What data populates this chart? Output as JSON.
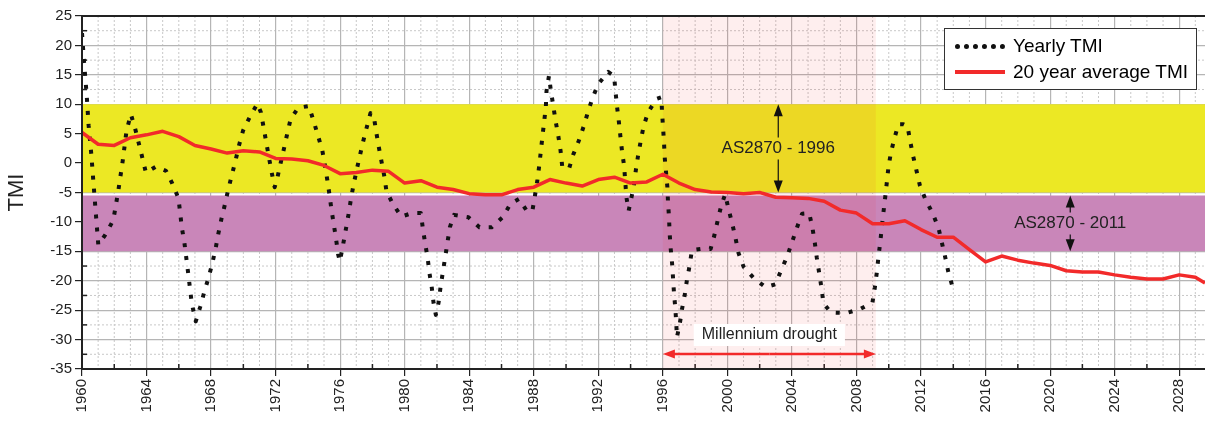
{
  "chart_data": {
    "type": "line",
    "ylabel": "TMI",
    "xlim": [
      1960,
      2029.6
    ],
    "xticks": [
      1960,
      1964,
      1968,
      1972,
      1976,
      1980,
      1984,
      1988,
      1992,
      1996,
      2000,
      2004,
      2008,
      2012,
      2016,
      2020,
      2024,
      2028
    ],
    "ylim": [
      -35,
      25
    ],
    "yticks": [
      -35,
      -30,
      -25,
      -20,
      -15,
      -10,
      -5,
      0,
      5,
      10,
      15,
      20,
      25
    ],
    "grid": true,
    "legend": "top right",
    "marker": "none",
    "series": [
      {
        "name": "Yearly TMI",
        "color": "#111111",
        "line_style": "dotted",
        "x": [
          1960,
          1960.14,
          1960.29,
          1960.41,
          1960.58,
          1960.72,
          1960.87,
          1961.01,
          1961.44,
          1961.94,
          1962.25,
          1962.52,
          1962.76,
          1963.03,
          1963.3,
          1963.75,
          1963.96,
          1964.58,
          1965.2,
          1965.6,
          1965.98,
          1966.19,
          1966.35,
          1966.58,
          1966.8,
          1967.05,
          1967.32,
          1967.57,
          1967.84,
          1968.08,
          1968.29,
          1968.45,
          1968.64,
          1968.87,
          1969.07,
          1969.3,
          1969.53,
          1969.73,
          1969.98,
          1970.39,
          1970.87,
          1971.09,
          1971.26,
          1971.42,
          1971.59,
          1971.75,
          1971.94,
          1972.1,
          1972.31,
          1972.52,
          1972.72,
          1972.93,
          1973.4,
          1974.06,
          1974.35,
          1974.62,
          1974.89,
          1975.05,
          1975.2,
          1975.34,
          1975.46,
          1975.61,
          1975.75,
          1975.88,
          1975.98,
          1976.16,
          1976.33,
          1976.49,
          1976.64,
          1976.8,
          1976.99,
          1977.2,
          1977.4,
          1977.63,
          1977.88,
          1978.08,
          1978.23,
          1978.39,
          1978.56,
          1978.74,
          1978.87,
          1979.26,
          1979.79,
          1980.45,
          1981.0,
          1981.13,
          1981.27,
          1981.42,
          1981.54,
          1981.68,
          1981.79,
          1981.93,
          1982.1,
          1982.22,
          1982.36,
          1982.51,
          1982.65,
          1982.8,
          1983.06,
          1983.95,
          1984.63,
          1985.39,
          1986.07,
          1986.56,
          1987.08,
          1987.61,
          1987.92,
          1988.07,
          1988.23,
          1988.34,
          1988.44,
          1988.54,
          1988.65,
          1988.75,
          1988.79,
          1988.94,
          1989.06,
          1989.21,
          1989.35,
          1989.52,
          1989.66,
          1989.76,
          1990.18,
          1990.44,
          1990.79,
          1991.1,
          1991.37,
          1991.66,
          1991.99,
          1992.61,
          1992.98,
          1993.06,
          1993.16,
          1993.27,
          1993.37,
          1993.47,
          1993.6,
          1993.74,
          1993.88,
          1994.01,
          1994.2,
          1994.32,
          1994.46,
          1994.63,
          1994.81,
          1995.08,
          1995.6,
          1995.91,
          1995.95,
          1996.01,
          1996.07,
          1996.11,
          1996.28,
          1996.32,
          1996.38,
          1996.42,
          1996.48,
          1996.57,
          1996.63,
          1996.69,
          1996.77,
          1996.83,
          1996.87,
          1997.04,
          1997.18,
          1997.35,
          1997.49,
          1997.66,
          1997.8,
          1998.34,
          1998.96,
          1999.2,
          1999.41,
          1999.62,
          1999.86,
          2000.07,
          2000.3,
          2000.5,
          2000.69,
          2001.0,
          2001.62,
          2002.36,
          2002.98,
          2003.33,
          2003.7,
          2004.01,
          2004.32,
          2004.63,
          2005.07,
          2005.27,
          2005.42,
          2005.54,
          2005.69,
          2005.83,
          2005.95,
          2006.41,
          2007.34,
          2008.23,
          2008.99,
          2009.14,
          2009.26,
          2009.36,
          2009.47,
          2009.57,
          2009.67,
          2009.78,
          2009.88,
          2009.98,
          2010.13,
          2010.34,
          2010.6,
          2010.91,
          2011.16,
          2011.33,
          2011.51,
          2011.72,
          2011.93,
          2012.26,
          2012.71,
          2013.08,
          2013.29,
          2013.5,
          2013.7,
          2013.95
        ],
        "values": [
          22.1,
          16.7,
          11.6,
          6.4,
          1.4,
          -3.7,
          -9.0,
          -13.9,
          -12.2,
          -9.7,
          -4.7,
          0.3,
          5.5,
          8.3,
          5.8,
          0.8,
          -1.6,
          -0.6,
          -1.3,
          -3.5,
          -6.0,
          -11.0,
          -13.6,
          -18.7,
          -23.8,
          -26.9,
          -24.5,
          -22.0,
          -19.5,
          -17.0,
          -14.4,
          -12.0,
          -9.5,
          -6.9,
          -4.4,
          -1.9,
          0.6,
          3.0,
          5.5,
          7.8,
          10.1,
          8.6,
          6.0,
          3.5,
          0.9,
          -1.5,
          -4.1,
          -2.6,
          0.0,
          2.5,
          5.0,
          7.5,
          9.4,
          9.7,
          7.2,
          4.7,
          2.2,
          -0.3,
          -2.8,
          -5.4,
          -7.9,
          -10.5,
          -13.0,
          -15.6,
          -16.7,
          -14.2,
          -11.6,
          -9.2,
          -6.6,
          -4.1,
          -1.6,
          1.0,
          3.4,
          5.9,
          8.5,
          8.0,
          5.4,
          2.8,
          0.3,
          -2.3,
          -4.8,
          -6.9,
          -9.1,
          -8.5,
          -8.5,
          -11.2,
          -13.7,
          -16.1,
          -18.8,
          -21.2,
          -23.8,
          -25.8,
          -23.7,
          -21.1,
          -18.6,
          -16.0,
          -13.5,
          -10.9,
          -8.8,
          -9.2,
          -10.9,
          -10.9,
          -9.2,
          -6.9,
          -6.1,
          -8.3,
          -8.0,
          -5.6,
          -2.8,
          -0.4,
          2.1,
          4.6,
          7.2,
          9.7,
          12.3,
          14.8,
          12.3,
          9.7,
          7.2,
          4.6,
          2.1,
          -0.5,
          -1.0,
          1.4,
          3.8,
          6.3,
          8.8,
          11.2,
          13.4,
          15.5,
          14.8,
          12.3,
          9.6,
          7.1,
          4.5,
          2.0,
          -0.5,
          -5.8,
          -8.1,
          -6.4,
          -3.9,
          -1.3,
          1.2,
          3.8,
          6.3,
          8.6,
          10.9,
          11.2,
          8.6,
          6.1,
          3.6,
          1.1,
          -4.1,
          -6.7,
          -9.2,
          -11.9,
          -14.4,
          -17.0,
          -19.5,
          -22.1,
          -24.6,
          -27.2,
          -29.6,
          -27.5,
          -24.9,
          -22.5,
          -19.9,
          -17.4,
          -14.8,
          -14.6,
          -14.6,
          -12.2,
          -9.6,
          -7.2,
          -5.3,
          -7.8,
          -10.3,
          -12.7,
          -15.3,
          -17.6,
          -19.5,
          -21.1,
          -20.6,
          -18.2,
          -15.9,
          -13.4,
          -10.9,
          -8.6,
          -8.5,
          -11.0,
          -13.6,
          -16.1,
          -18.7,
          -21.2,
          -23.8,
          -25.4,
          -25.5,
          -24.8,
          -23.7,
          -21.1,
          -18.6,
          -16.0,
          -13.5,
          -10.9,
          -8.4,
          -5.8,
          -3.3,
          -0.7,
          1.7,
          4.1,
          6.6,
          6.6,
          6.3,
          3.7,
          1.2,
          -1.3,
          -3.8,
          -6.1,
          -8.5,
          -11.0,
          -13.5,
          -16.0,
          -18.6,
          -21.0
        ]
      },
      {
        "name": "20 year average TMI",
        "color": "#f22a2a",
        "line_style": "solid",
        "x": [
          1960,
          1961,
          1962,
          1963,
          1964,
          1965,
          1966,
          1967,
          1968,
          1969,
          1970,
          1971,
          1972,
          1973,
          1974,
          1975,
          1976,
          1977,
          1978,
          1979,
          1980,
          1981,
          1982,
          1983,
          1984,
          1985,
          1986,
          1987,
          1988,
          1989,
          1990,
          1991,
          1992,
          1993,
          1994,
          1995,
          1996,
          1997,
          1998,
          1999,
          2000,
          2001,
          2002,
          2003,
          2004,
          2005,
          2006,
          2007,
          2008,
          2009,
          2010,
          2011,
          2012,
          2013,
          2014,
          2015,
          2016,
          2017,
          2018,
          2019,
          2020,
          2021,
          2022,
          2023,
          2024,
          2025,
          2026,
          2027,
          2028,
          2029,
          2029.6
        ],
        "values": [
          5.2,
          3.2,
          3.0,
          4.3,
          4.8,
          5.4,
          4.5,
          3.0,
          2.4,
          1.7,
          2.1,
          1.9,
          0.8,
          0.7,
          0.4,
          -0.4,
          -1.8,
          -1.6,
          -1.2,
          -1.4,
          -3.4,
          -3.0,
          -4.1,
          -4.5,
          -5.2,
          -5.4,
          -5.4,
          -4.5,
          -4.1,
          -2.8,
          -3.4,
          -3.9,
          -2.8,
          -2.4,
          -3.4,
          -3.2,
          -1.9,
          -3.4,
          -4.5,
          -4.9,
          -5.0,
          -5.2,
          -5.0,
          -5.8,
          -5.9,
          -6.0,
          -6.5,
          -8.0,
          -8.5,
          -10.3,
          -10.3,
          -9.8,
          -11.3,
          -12.6,
          -12.6,
          -14.7,
          -16.8,
          -15.8,
          -16.5,
          -17.0,
          -17.4,
          -18.3,
          -18.5,
          -18.5,
          -19.0,
          -19.4,
          -19.7,
          -19.7,
          -19.0,
          -19.4,
          -20.4
        ]
      }
    ],
    "bands": [
      {
        "axis": "y",
        "from": -5,
        "to": 10,
        "label": "AS2870 - 1996",
        "color": "#ece824"
      },
      {
        "axis": "y",
        "from": -15,
        "to": -5.5,
        "label": "AS2870 - 2011",
        "color": "#c986b9"
      },
      {
        "axis": "x",
        "from": 1996,
        "to": 2009.2,
        "label": "Millennium drought",
        "color": "#f22a2a"
      }
    ]
  }
}
